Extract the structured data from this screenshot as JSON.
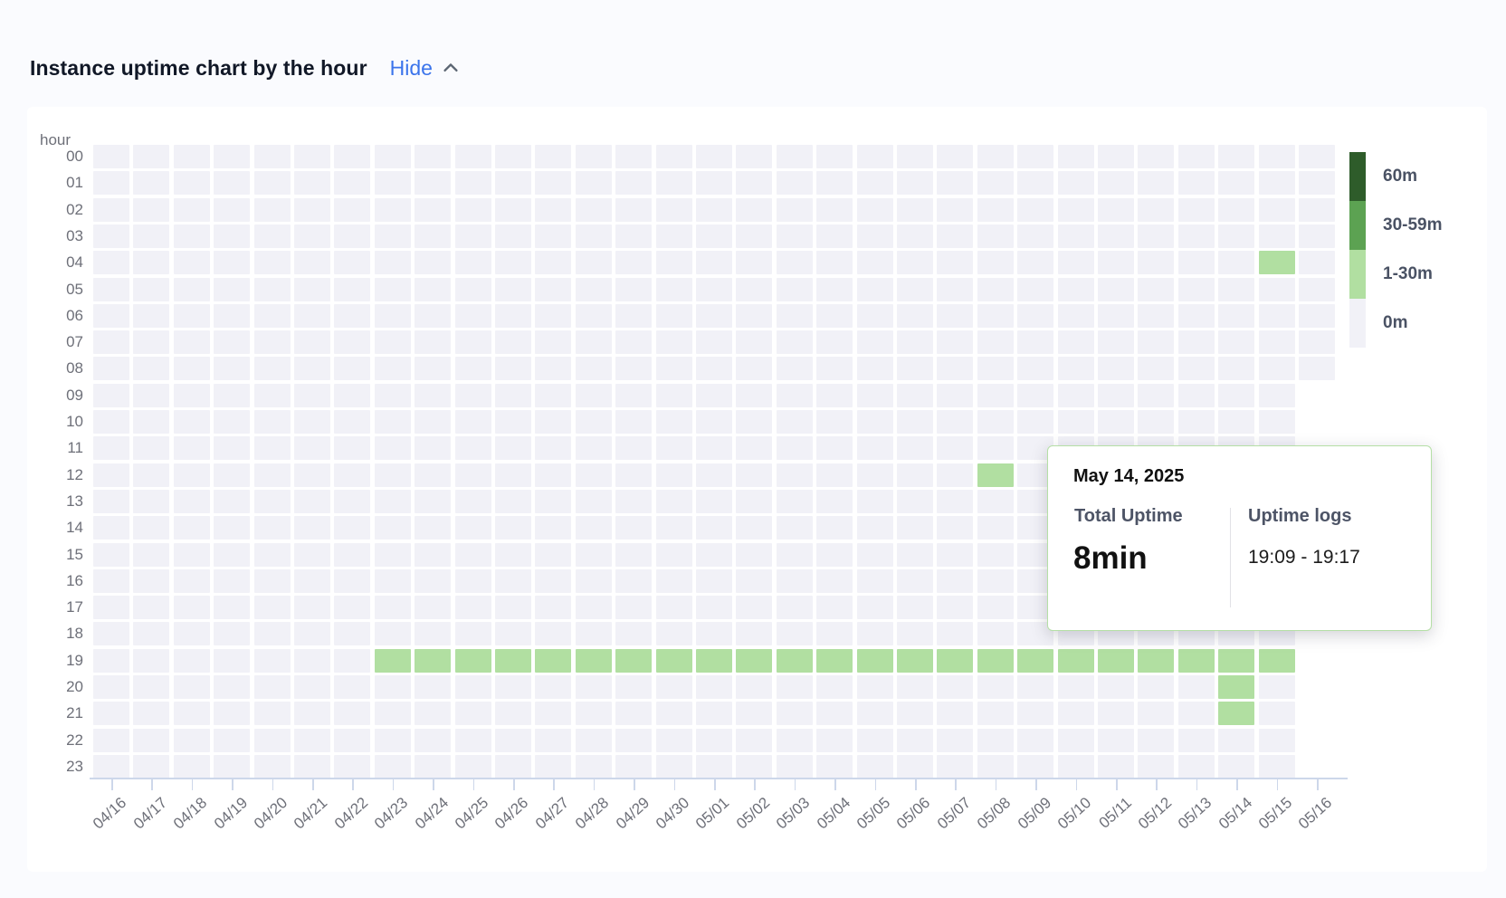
{
  "page": {
    "title": "Instance uptime chart by the hour",
    "hide_label": "Hide"
  },
  "tooltip": {
    "date": "May 14, 2025",
    "total_uptime_label": "Total Uptime",
    "total_uptime_value": "8min",
    "logs_label": "Uptime logs",
    "logs_value": "19:09 - 19:17"
  },
  "chart_data": {
    "type": "heatmap",
    "title": "Instance uptime chart by the hour",
    "y_axis_name": "hour",
    "hours": [
      "00",
      "01",
      "02",
      "03",
      "04",
      "05",
      "06",
      "07",
      "08",
      "09",
      "10",
      "11",
      "12",
      "13",
      "14",
      "15",
      "16",
      "17",
      "18",
      "19",
      "20",
      "21",
      "22",
      "23"
    ],
    "dates": [
      "04/16",
      "04/17",
      "04/18",
      "04/19",
      "04/20",
      "04/21",
      "04/22",
      "04/23",
      "04/24",
      "04/25",
      "04/26",
      "04/27",
      "04/28",
      "04/29",
      "04/30",
      "05/01",
      "05/02",
      "05/03",
      "05/04",
      "05/05",
      "05/06",
      "05/07",
      "05/08",
      "05/09",
      "05/10",
      "05/11",
      "05/12",
      "05/13",
      "05/14",
      "05/15",
      "05/16"
    ],
    "partial_last_column": {
      "date": "05/16",
      "first_hour": "00",
      "last_hour": "08"
    },
    "legend_position": "right",
    "legend": [
      {
        "label": "60m",
        "color": "#2e5c2a"
      },
      {
        "label": "30-59m",
        "color": "#5ca252"
      },
      {
        "label": "1-30m",
        "color": "#b1dfa1"
      },
      {
        "label": "0m",
        "color": "#f1f1f7"
      }
    ],
    "colors": {
      "empty_cell": "#f1f1f7",
      "uptime_1_30m": "#b1dfa1",
      "axis": "#cdd7ea",
      "accent_blue": "#3b74eb"
    },
    "green_cells": [
      {
        "date": "05/15",
        "hour": "04"
      },
      {
        "date": "05/08",
        "hour": "12"
      },
      {
        "date": "04/23",
        "hour": "19"
      },
      {
        "date": "04/24",
        "hour": "19"
      },
      {
        "date": "04/25",
        "hour": "19"
      },
      {
        "date": "04/26",
        "hour": "19"
      },
      {
        "date": "04/27",
        "hour": "19"
      },
      {
        "date": "04/28",
        "hour": "19"
      },
      {
        "date": "04/29",
        "hour": "19"
      },
      {
        "date": "04/30",
        "hour": "19"
      },
      {
        "date": "05/01",
        "hour": "19"
      },
      {
        "date": "05/02",
        "hour": "19"
      },
      {
        "date": "05/03",
        "hour": "19"
      },
      {
        "date": "05/04",
        "hour": "19"
      },
      {
        "date": "05/05",
        "hour": "19"
      },
      {
        "date": "05/06",
        "hour": "19"
      },
      {
        "date": "05/07",
        "hour": "19"
      },
      {
        "date": "05/08",
        "hour": "19"
      },
      {
        "date": "05/09",
        "hour": "19"
      },
      {
        "date": "05/10",
        "hour": "19"
      },
      {
        "date": "05/11",
        "hour": "19"
      },
      {
        "date": "05/12",
        "hour": "19"
      },
      {
        "date": "05/13",
        "hour": "19"
      },
      {
        "date": "05/14",
        "hour": "19"
      },
      {
        "date": "05/15",
        "hour": "19"
      },
      {
        "date": "05/14",
        "hour": "20"
      },
      {
        "date": "05/14",
        "hour": "21"
      }
    ]
  }
}
